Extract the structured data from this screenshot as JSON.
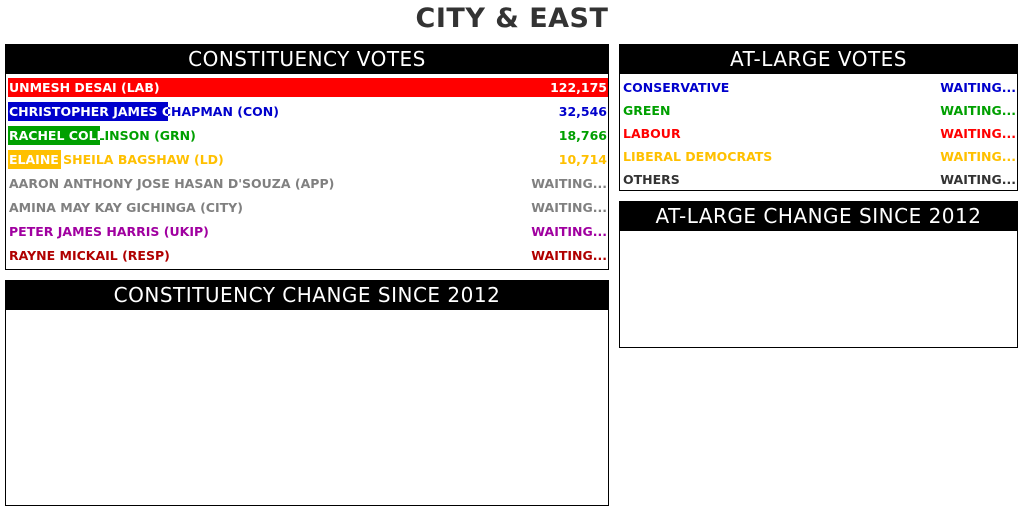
{
  "page_title": "CITY & EAST",
  "constituency_votes": {
    "header": "CONSTITUENCY VOTES",
    "candidates": [
      {
        "name": "UNMESH DESAI (LAB)",
        "value": "122,175",
        "color": "#ff0000",
        "fraction": 1.0
      },
      {
        "name": "CHRISTOPHER JAMES CHAPMAN (CON)",
        "value": "32,546",
        "color": "#0000cc",
        "fraction": 0.266
      },
      {
        "name": "RACHEL COLLINSON (GRN)",
        "value": "18,766",
        "color": "#00a000",
        "fraction": 0.154
      },
      {
        "name": "ELAINE SHEILA BAGSHAW (LD)",
        "value": "10,714",
        "color": "#ffc000",
        "fraction": 0.088
      },
      {
        "name": "AARON ANTHONY JOSE HASAN D'SOUZA (APP)",
        "value": "WAITING...",
        "color": "#808080",
        "fraction": 0
      },
      {
        "name": "AMINA MAY KAY GICHINGA (CITY)",
        "value": "WAITING...",
        "color": "#808080",
        "fraction": 0
      },
      {
        "name": "PETER JAMES HARRIS (UKIP)",
        "value": "WAITING...",
        "color": "#a000a0",
        "fraction": 0
      },
      {
        "name": "RAYNE MICKAIL (RESP)",
        "value": "WAITING...",
        "color": "#b00000",
        "fraction": 0
      }
    ]
  },
  "constituency_change": {
    "header": "CONSTITUENCY CHANGE SINCE 2012"
  },
  "atlarge_votes": {
    "header": "AT-LARGE VOTES",
    "parties": [
      {
        "name": "CONSERVATIVE",
        "value": "WAITING...",
        "color": "#0000cc"
      },
      {
        "name": "GREEN",
        "value": "WAITING...",
        "color": "#00a000"
      },
      {
        "name": "LABOUR",
        "value": "WAITING...",
        "color": "#ff0000"
      },
      {
        "name": "LIBERAL DEMOCRATS",
        "value": "WAITING...",
        "color": "#ffc000"
      },
      {
        "name": "OTHERS",
        "value": "WAITING...",
        "color": "#333333"
      }
    ]
  },
  "atlarge_change": {
    "header": "AT-LARGE CHANGE SINCE 2012"
  }
}
